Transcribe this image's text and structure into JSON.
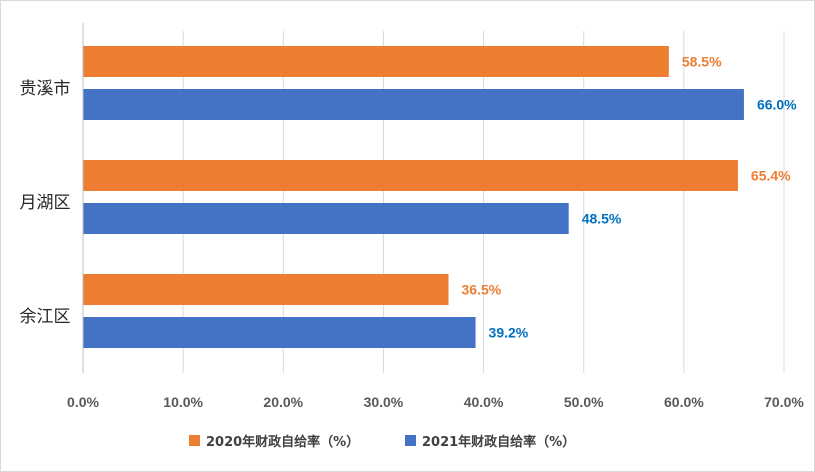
{
  "chart_data": {
    "type": "bar",
    "orientation": "horizontal",
    "categories": [
      "贵溪市",
      "月湖区",
      "余江区"
    ],
    "series": [
      {
        "name": "2020年财政自给率（%）",
        "color": "#ed7d31",
        "values": [
          58.5,
          65.4,
          36.5
        ],
        "labels": [
          "58.5%",
          "65.4%",
          "36.5%"
        ]
      },
      {
        "name": "2021年财政自给率（%）",
        "color": "#4472c4",
        "values": [
          66.0,
          48.5,
          39.2
        ],
        "labels": [
          "66.0%",
          "48.5%",
          "39.2%"
        ]
      }
    ],
    "xlim": [
      0,
      70
    ],
    "x_ticks": [
      "0.0%",
      "10.0%",
      "20.0%",
      "30.0%",
      "40.0%",
      "50.0%",
      "60.0%",
      "70.0%"
    ],
    "gridlines": true,
    "legend_position": "bottom",
    "label_colors": [
      "#ed7d31",
      "#0070c0"
    ]
  }
}
